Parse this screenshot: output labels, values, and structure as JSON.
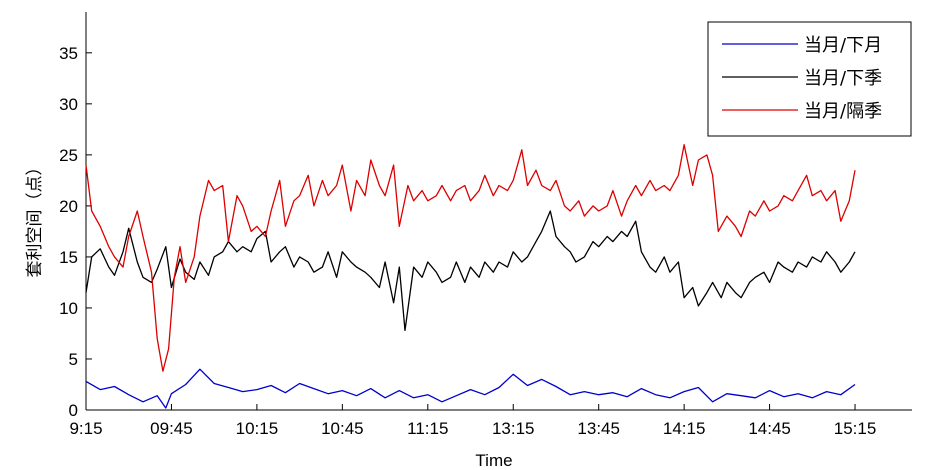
{
  "chart_data": {
    "type": "line",
    "title": "",
    "xlabel": "Time",
    "ylabel": "套利空间（点）",
    "ylim": [
      0,
      39
    ],
    "yticks": [
      0,
      5,
      10,
      15,
      20,
      25,
      30,
      35
    ],
    "xlim": [
      0,
      290
    ],
    "xticks": [
      {
        "label": "9:15",
        "x": 0
      },
      {
        "label": "09:45",
        "x": 30
      },
      {
        "label": "10:15",
        "x": 60
      },
      {
        "label": "10:45",
        "x": 90
      },
      {
        "label": "11:15",
        "x": 120
      },
      {
        "label": "13:15",
        "x": 150
      },
      {
        "label": "13:45",
        "x": 180
      },
      {
        "label": "14:15",
        "x": 210
      },
      {
        "label": "14:45",
        "x": 240
      },
      {
        "label": "15:15",
        "x": 270
      }
    ],
    "grid": false,
    "legend_position": "top-right",
    "series": [
      {
        "name": "当月/下月",
        "color": "#0000cc",
        "points": [
          [
            0,
            2.8
          ],
          [
            5,
            2.0
          ],
          [
            10,
            2.3
          ],
          [
            15,
            1.5
          ],
          [
            20,
            0.8
          ],
          [
            25,
            1.4
          ],
          [
            28,
            0.2
          ],
          [
            30,
            1.6
          ],
          [
            35,
            2.5
          ],
          [
            40,
            4.0
          ],
          [
            45,
            2.6
          ],
          [
            50,
            2.2
          ],
          [
            55,
            1.8
          ],
          [
            60,
            2.0
          ],
          [
            65,
            2.4
          ],
          [
            70,
            1.7
          ],
          [
            75,
            2.6
          ],
          [
            80,
            2.1
          ],
          [
            85,
            1.6
          ],
          [
            90,
            1.9
          ],
          [
            95,
            1.4
          ],
          [
            100,
            2.1
          ],
          [
            105,
            1.2
          ],
          [
            110,
            1.9
          ],
          [
            115,
            1.2
          ],
          [
            120,
            1.5
          ],
          [
            125,
            0.8
          ],
          [
            130,
            1.4
          ],
          [
            135,
            2.0
          ],
          [
            140,
            1.5
          ],
          [
            145,
            2.2
          ],
          [
            150,
            3.5
          ],
          [
            155,
            2.4
          ],
          [
            160,
            3.0
          ],
          [
            165,
            2.3
          ],
          [
            170,
            1.5
          ],
          [
            175,
            1.8
          ],
          [
            180,
            1.5
          ],
          [
            185,
            1.7
          ],
          [
            190,
            1.3
          ],
          [
            195,
            2.1
          ],
          [
            200,
            1.5
          ],
          [
            205,
            1.2
          ],
          [
            210,
            1.8
          ],
          [
            215,
            2.2
          ],
          [
            220,
            0.8
          ],
          [
            225,
            1.6
          ],
          [
            230,
            1.4
          ],
          [
            235,
            1.2
          ],
          [
            240,
            1.9
          ],
          [
            245,
            1.3
          ],
          [
            250,
            1.6
          ],
          [
            255,
            1.2
          ],
          [
            260,
            1.8
          ],
          [
            265,
            1.5
          ],
          [
            270,
            2.5
          ]
        ]
      },
      {
        "name": "当月/下季",
        "color": "#000000",
        "points": [
          [
            0,
            11.5
          ],
          [
            2,
            15.0
          ],
          [
            5,
            15.8
          ],
          [
            8,
            14.0
          ],
          [
            10,
            13.2
          ],
          [
            13,
            15.5
          ],
          [
            15,
            17.8
          ],
          [
            18,
            14.5
          ],
          [
            20,
            13.0
          ],
          [
            23,
            12.5
          ],
          [
            25,
            13.8
          ],
          [
            28,
            16.0
          ],
          [
            30,
            12.0
          ],
          [
            33,
            14.8
          ],
          [
            35,
            13.5
          ],
          [
            38,
            12.8
          ],
          [
            40,
            14.5
          ],
          [
            43,
            13.2
          ],
          [
            45,
            15.0
          ],
          [
            48,
            15.5
          ],
          [
            50,
            16.5
          ],
          [
            53,
            15.5
          ],
          [
            55,
            16.0
          ],
          [
            58,
            15.5
          ],
          [
            60,
            16.8
          ],
          [
            63,
            17.5
          ],
          [
            65,
            14.5
          ],
          [
            68,
            15.5
          ],
          [
            70,
            16.0
          ],
          [
            73,
            14.0
          ],
          [
            75,
            15.0
          ],
          [
            78,
            14.5
          ],
          [
            80,
            13.5
          ],
          [
            83,
            14.0
          ],
          [
            85,
            15.5
          ],
          [
            88,
            13.0
          ],
          [
            90,
            15.5
          ],
          [
            93,
            14.5
          ],
          [
            95,
            14.0
          ],
          [
            98,
            13.5
          ],
          [
            100,
            13.0
          ],
          [
            103,
            12.0
          ],
          [
            105,
            14.5
          ],
          [
            108,
            10.5
          ],
          [
            110,
            14.0
          ],
          [
            112,
            7.8
          ],
          [
            115,
            14.0
          ],
          [
            118,
            13.0
          ],
          [
            120,
            14.5
          ],
          [
            123,
            13.5
          ],
          [
            125,
            12.5
          ],
          [
            128,
            13.0
          ],
          [
            130,
            14.5
          ],
          [
            133,
            12.5
          ],
          [
            135,
            14.0
          ],
          [
            138,
            13.0
          ],
          [
            140,
            14.5
          ],
          [
            143,
            13.5
          ],
          [
            145,
            14.5
          ],
          [
            148,
            14.0
          ],
          [
            150,
            15.5
          ],
          [
            153,
            14.5
          ],
          [
            155,
            15.0
          ],
          [
            158,
            16.5
          ],
          [
            160,
            17.5
          ],
          [
            163,
            19.5
          ],
          [
            165,
            17.0
          ],
          [
            168,
            16.0
          ],
          [
            170,
            15.5
          ],
          [
            172,
            14.5
          ],
          [
            175,
            15.0
          ],
          [
            178,
            16.5
          ],
          [
            180,
            16.0
          ],
          [
            183,
            17.0
          ],
          [
            185,
            16.5
          ],
          [
            188,
            17.5
          ],
          [
            190,
            17.0
          ],
          [
            193,
            18.5
          ],
          [
            195,
            15.5
          ],
          [
            198,
            14.0
          ],
          [
            200,
            13.5
          ],
          [
            203,
            15.0
          ],
          [
            205,
            13.5
          ],
          [
            208,
            14.5
          ],
          [
            210,
            11.0
          ],
          [
            213,
            12.0
          ],
          [
            215,
            10.2
          ],
          [
            218,
            11.5
          ],
          [
            220,
            12.5
          ],
          [
            223,
            11.0
          ],
          [
            225,
            12.5
          ],
          [
            228,
            11.5
          ],
          [
            230,
            11.0
          ],
          [
            233,
            12.5
          ],
          [
            235,
            13.0
          ],
          [
            238,
            13.5
          ],
          [
            240,
            12.5
          ],
          [
            243,
            14.5
          ],
          [
            245,
            14.0
          ],
          [
            248,
            13.5
          ],
          [
            250,
            14.5
          ],
          [
            253,
            14.0
          ],
          [
            255,
            15.0
          ],
          [
            258,
            14.5
          ],
          [
            260,
            15.5
          ],
          [
            263,
            14.5
          ],
          [
            265,
            13.5
          ],
          [
            268,
            14.5
          ],
          [
            270,
            15.5
          ]
        ]
      },
      {
        "name": "当月/隔季",
        "color": "#dd0000",
        "points": [
          [
            0,
            24.0
          ],
          [
            2,
            19.5
          ],
          [
            5,
            18.0
          ],
          [
            8,
            16.0
          ],
          [
            10,
            15.0
          ],
          [
            13,
            14.0
          ],
          [
            15,
            17.0
          ],
          [
            18,
            19.5
          ],
          [
            20,
            17.0
          ],
          [
            23,
            13.5
          ],
          [
            25,
            7.0
          ],
          [
            27,
            3.8
          ],
          [
            29,
            6.0
          ],
          [
            31,
            13.0
          ],
          [
            33,
            16.0
          ],
          [
            35,
            12.5
          ],
          [
            38,
            15.0
          ],
          [
            40,
            19.0
          ],
          [
            43,
            22.5
          ],
          [
            45,
            21.5
          ],
          [
            48,
            22.0
          ],
          [
            50,
            16.5
          ],
          [
            53,
            21.0
          ],
          [
            55,
            20.0
          ],
          [
            58,
            17.5
          ],
          [
            60,
            18.0
          ],
          [
            63,
            17.0
          ],
          [
            65,
            19.5
          ],
          [
            68,
            22.5
          ],
          [
            70,
            18.0
          ],
          [
            73,
            20.5
          ],
          [
            75,
            21.0
          ],
          [
            78,
            23.0
          ],
          [
            80,
            20.0
          ],
          [
            83,
            22.5
          ],
          [
            85,
            21.0
          ],
          [
            88,
            22.0
          ],
          [
            90,
            24.0
          ],
          [
            93,
            19.5
          ],
          [
            95,
            22.5
          ],
          [
            98,
            21.0
          ],
          [
            100,
            24.5
          ],
          [
            103,
            22.0
          ],
          [
            105,
            21.0
          ],
          [
            108,
            24.0
          ],
          [
            110,
            18.0
          ],
          [
            113,
            22.0
          ],
          [
            115,
            20.5
          ],
          [
            118,
            21.5
          ],
          [
            120,
            20.5
          ],
          [
            123,
            21.0
          ],
          [
            125,
            22.0
          ],
          [
            128,
            20.5
          ],
          [
            130,
            21.5
          ],
          [
            133,
            22.0
          ],
          [
            135,
            20.5
          ],
          [
            138,
            21.5
          ],
          [
            140,
            23.0
          ],
          [
            143,
            21.0
          ],
          [
            145,
            22.0
          ],
          [
            148,
            21.5
          ],
          [
            150,
            22.5
          ],
          [
            153,
            25.5
          ],
          [
            155,
            22.0
          ],
          [
            158,
            23.5
          ],
          [
            160,
            22.0
          ],
          [
            163,
            21.5
          ],
          [
            165,
            22.5
          ],
          [
            168,
            20.0
          ],
          [
            170,
            19.5
          ],
          [
            173,
            20.5
          ],
          [
            175,
            19.0
          ],
          [
            178,
            20.0
          ],
          [
            180,
            19.5
          ],
          [
            183,
            20.0
          ],
          [
            185,
            21.5
          ],
          [
            188,
            19.0
          ],
          [
            190,
            20.5
          ],
          [
            193,
            22.0
          ],
          [
            195,
            21.0
          ],
          [
            198,
            22.5
          ],
          [
            200,
            21.5
          ],
          [
            203,
            22.0
          ],
          [
            205,
            21.5
          ],
          [
            208,
            23.0
          ],
          [
            210,
            26.0
          ],
          [
            213,
            22.0
          ],
          [
            215,
            24.5
          ],
          [
            218,
            25.0
          ],
          [
            220,
            23.0
          ],
          [
            222,
            17.5
          ],
          [
            225,
            19.0
          ],
          [
            228,
            18.0
          ],
          [
            230,
            17.0
          ],
          [
            233,
            19.5
          ],
          [
            235,
            19.0
          ],
          [
            238,
            20.5
          ],
          [
            240,
            19.5
          ],
          [
            243,
            20.0
          ],
          [
            245,
            21.0
          ],
          [
            248,
            20.5
          ],
          [
            250,
            21.5
          ],
          [
            253,
            23.0
          ],
          [
            255,
            21.0
          ],
          [
            258,
            21.5
          ],
          [
            260,
            20.5
          ],
          [
            263,
            21.5
          ],
          [
            265,
            18.5
          ],
          [
            268,
            20.5
          ],
          [
            270,
            23.5
          ]
        ]
      }
    ]
  }
}
